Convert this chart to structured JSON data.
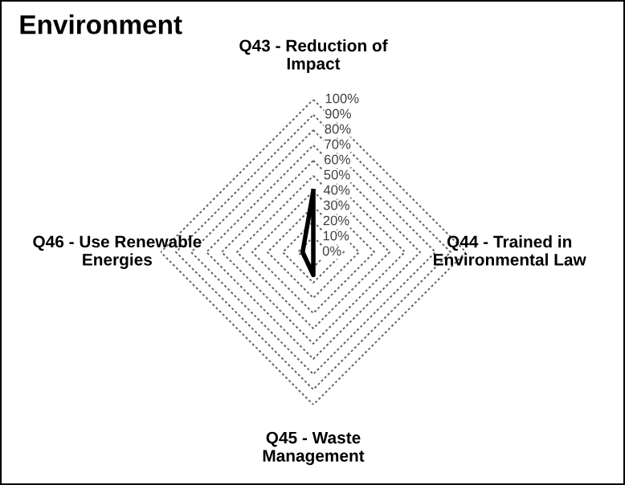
{
  "chart_data": {
    "type": "radar",
    "title": "Environment",
    "categories": [
      "Q43 - Reduction of\nImpact",
      "Q44 - Trained in\nEnvironmental Law",
      "Q45 - Waste\nManagement",
      "Q46 - Use Renewable\nEnergies"
    ],
    "series": [
      {
        "color": "#000000",
        "values": [
          40,
          0,
          15,
          7
        ]
      }
    ],
    "ylim": [
      0,
      100
    ],
    "yticks": [
      {
        "value": 0,
        "label": "0%"
      },
      {
        "value": 10,
        "label": "10%"
      },
      {
        "value": 20,
        "label": "20%"
      },
      {
        "value": 30,
        "label": "30%"
      },
      {
        "value": 40,
        "label": "40%"
      },
      {
        "value": 50,
        "label": "50%"
      },
      {
        "value": 60,
        "label": "60%"
      },
      {
        "value": 70,
        "label": "70%"
      },
      {
        "value": 80,
        "label": "80%"
      },
      {
        "value": 90,
        "label": "90%"
      },
      {
        "value": 100,
        "label": "100%"
      }
    ],
    "grid": true,
    "marker": "none",
    "line_style": "solid",
    "legend": false
  }
}
